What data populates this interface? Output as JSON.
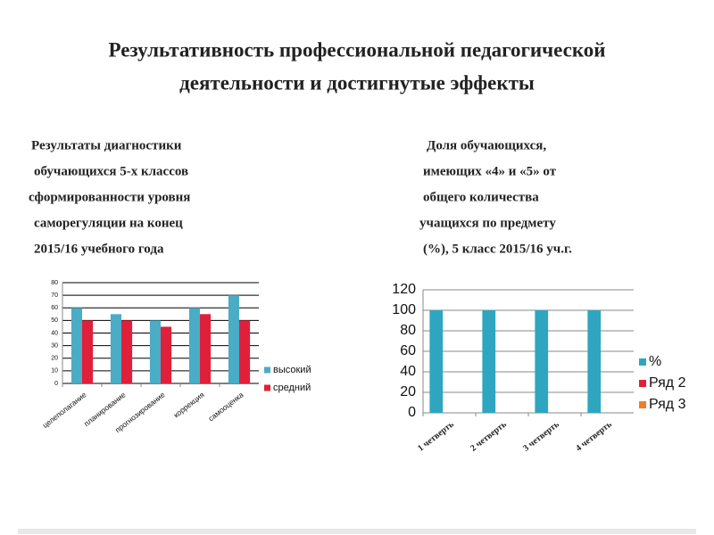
{
  "title": [
    "Результативность профессиональной педагогической",
    "деятельности и достигнутые эффекты"
  ],
  "captions": [
    [
      "Результаты диагностики",
      "обучающихся 5-х классов",
      "сформированности  уровня",
      "саморегуляции  на конец",
      "2015/16  учебного года"
    ],
    [
      "Доля обучающихся,",
      "имеющих «4» и «5» от",
      "общего количества",
      "учащихся  по предмету",
      "(%), 5 класс 2015/16 уч.г."
    ]
  ],
  "chart_data": [
    {
      "type": "bar",
      "categories": [
        "целеполагание",
        "планирование",
        "прогнозирование",
        "коррекция",
        "самооценка"
      ],
      "series": [
        {
          "name": "высокий",
          "color": "#4bacc6",
          "values": [
            60,
            55,
            50,
            60,
            70
          ]
        },
        {
          "name": "средний",
          "color": "#e0203a",
          "values": [
            50,
            50,
            45,
            55,
            50
          ]
        }
      ],
      "ylim": [
        0,
        80
      ],
      "yticks": [
        0,
        10,
        20,
        30,
        40,
        50,
        60,
        70,
        80
      ],
      "grid": true,
      "legend": "right"
    },
    {
      "type": "bar",
      "categories": [
        "1 четверть",
        "2 четверть",
        "3 четверть",
        "4 четверть"
      ],
      "series": [
        {
          "name": "%",
          "color": "#2ea6c0",
          "values": [
            100,
            100,
            100,
            100
          ]
        },
        {
          "name": "Ряд 2",
          "color": "#e0203a",
          "values": [
            null,
            null,
            null,
            null
          ]
        },
        {
          "name": "Ряд 3",
          "color": "#f07d2a",
          "values": [
            null,
            null,
            null,
            null
          ]
        }
      ],
      "ylim": [
        0,
        120
      ],
      "yticks": [
        0,
        20,
        40,
        60,
        80,
        100,
        120
      ],
      "grid": true,
      "legend": "right"
    }
  ]
}
